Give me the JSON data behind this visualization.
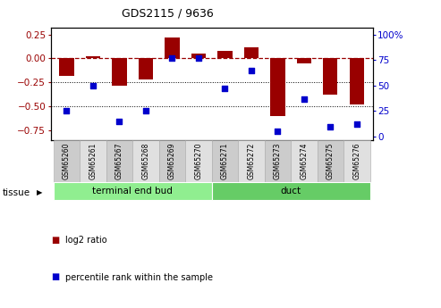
{
  "title": "GDS2115 / 9636",
  "samples": [
    "GSM65260",
    "GSM65261",
    "GSM65267",
    "GSM65268",
    "GSM65269",
    "GSM65270",
    "GSM65271",
    "GSM65272",
    "GSM65273",
    "GSM65274",
    "GSM65275",
    "GSM65276"
  ],
  "log2_ratio": [
    -0.18,
    0.02,
    -0.28,
    -0.22,
    0.22,
    0.05,
    0.08,
    0.12,
    -0.6,
    -0.05,
    -0.38,
    -0.48
  ],
  "percentile": [
    25,
    50,
    15,
    25,
    77,
    77,
    47,
    65,
    5,
    37,
    10,
    12
  ],
  "groups": [
    {
      "label": "terminal end bud",
      "start": 0,
      "end": 6,
      "color": "#90EE90"
    },
    {
      "label": "duct",
      "start": 6,
      "end": 12,
      "color": "#66CC66"
    }
  ],
  "bar_color": "#990000",
  "dot_color": "#0000CC",
  "ylim_left": [
    -0.85,
    0.32
  ],
  "ylim_right": [
    -3.57,
    107
  ],
  "yticks_left": [
    0.25,
    0.0,
    -0.25,
    -0.5,
    -0.75
  ],
  "yticks_right": [
    100,
    75,
    50,
    25,
    0
  ],
  "dotted_lines": [
    -0.25,
    -0.5
  ],
  "box_colors": [
    "#cccccc",
    "#e0e0e0"
  ],
  "tissue_label": "tissue",
  "legend_log2": "log2 ratio",
  "legend_pct": "percentile rank within the sample"
}
